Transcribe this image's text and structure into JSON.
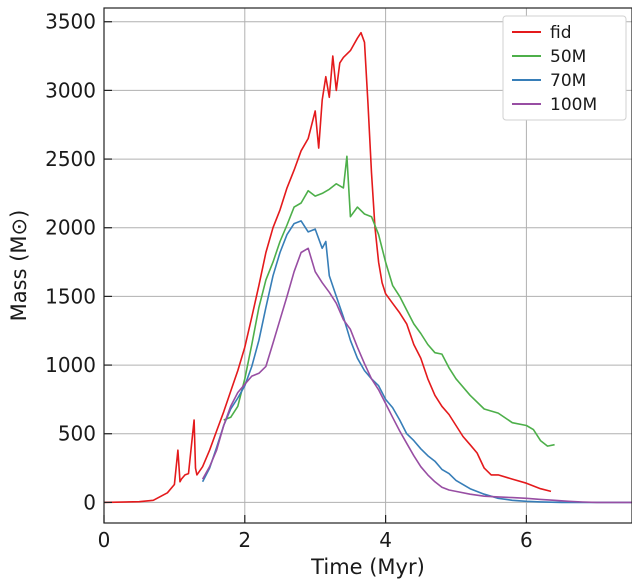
{
  "chart_data": {
    "type": "line",
    "title": "",
    "xlabel": "Time (Myr)",
    "ylabel": "Mass (M⊙)",
    "xlim": [
      0,
      7.5
    ],
    "ylim": [
      -150,
      3600
    ],
    "xticks": [
      0,
      2,
      4,
      6
    ],
    "yticks": [
      0,
      500,
      1000,
      1500,
      2000,
      2500,
      3000,
      3500
    ],
    "grid": true,
    "legend_position": "top-right",
    "series": [
      {
        "name": "fid",
        "color": "#e41a1c",
        "x": [
          0,
          0.5,
          0.7,
          0.9,
          1.0,
          1.05,
          1.08,
          1.1,
          1.15,
          1.2,
          1.28,
          1.3,
          1.32,
          1.4,
          1.5,
          1.6,
          1.7,
          1.8,
          1.9,
          2.0,
          2.1,
          2.2,
          2.3,
          2.4,
          2.5,
          2.6,
          2.7,
          2.8,
          2.9,
          3.0,
          3.05,
          3.1,
          3.15,
          3.2,
          3.25,
          3.3,
          3.35,
          3.4,
          3.5,
          3.6,
          3.65,
          3.7,
          3.75,
          3.8,
          3.85,
          3.9,
          3.95,
          4.0,
          4.1,
          4.2,
          4.3,
          4.4,
          4.5,
          4.6,
          4.7,
          4.8,
          4.9,
          5.0,
          5.1,
          5.2,
          5.3,
          5.4,
          5.5,
          5.6,
          5.8,
          6.0,
          6.2,
          6.35
        ],
        "y": [
          0,
          5,
          15,
          70,
          130,
          380,
          150,
          170,
          200,
          210,
          600,
          250,
          200,
          260,
          380,
          520,
          660,
          810,
          960,
          1130,
          1350,
          1580,
          1820,
          2000,
          2130,
          2290,
          2420,
          2560,
          2650,
          2850,
          2580,
          2930,
          3100,
          2950,
          3250,
          3000,
          3200,
          3240,
          3290,
          3380,
          3420,
          3350,
          2900,
          2400,
          2000,
          1750,
          1600,
          1520,
          1450,
          1380,
          1300,
          1150,
          1050,
          900,
          780,
          700,
          640,
          560,
          480,
          420,
          360,
          250,
          200,
          200,
          170,
          140,
          100,
          80
        ]
      },
      {
        "name": "50M",
        "color": "#4daf4a",
        "x": [
          1.7,
          1.8,
          1.9,
          2.0,
          2.1,
          2.2,
          2.3,
          2.4,
          2.5,
          2.6,
          2.7,
          2.8,
          2.9,
          3.0,
          3.1,
          3.2,
          3.3,
          3.4,
          3.45,
          3.5,
          3.6,
          3.7,
          3.8,
          3.9,
          4.0,
          4.1,
          4.2,
          4.3,
          4.4,
          4.5,
          4.6,
          4.7,
          4.8,
          4.9,
          5.0,
          5.2,
          5.4,
          5.6,
          5.8,
          6.0,
          6.1,
          6.2,
          6.3,
          6.4
        ],
        "y": [
          600,
          620,
          700,
          900,
          1150,
          1420,
          1620,
          1750,
          1900,
          2020,
          2150,
          2180,
          2270,
          2230,
          2250,
          2280,
          2320,
          2290,
          2520,
          2080,
          2150,
          2100,
          2080,
          1950,
          1750,
          1580,
          1500,
          1400,
          1300,
          1230,
          1150,
          1090,
          1080,
          980,
          900,
          780,
          680,
          650,
          580,
          560,
          530,
          450,
          410,
          420
        ]
      },
      {
        "name": "70M",
        "color": "#377eb8",
        "x": [
          1.4,
          1.5,
          1.6,
          1.7,
          1.8,
          1.9,
          2.0,
          2.1,
          2.2,
          2.3,
          2.4,
          2.5,
          2.6,
          2.7,
          2.8,
          2.9,
          3.0,
          3.1,
          3.15,
          3.2,
          3.3,
          3.4,
          3.5,
          3.6,
          3.7,
          3.8,
          3.9,
          4.0,
          4.1,
          4.2,
          4.3,
          4.4,
          4.5,
          4.6,
          4.7,
          4.8,
          4.9,
          5.0,
          5.2,
          5.4,
          5.6,
          5.8,
          6.0,
          6.2,
          6.5,
          7.0,
          7.5
        ],
        "y": [
          150,
          250,
          400,
          560,
          680,
          760,
          850,
          990,
          1180,
          1420,
          1650,
          1820,
          1950,
          2030,
          2050,
          1970,
          1990,
          1850,
          1900,
          1650,
          1500,
          1350,
          1180,
          1050,
          960,
          900,
          850,
          750,
          690,
          600,
          500,
          450,
          390,
          340,
          300,
          240,
          210,
          160,
          100,
          60,
          30,
          15,
          8,
          4,
          0,
          0,
          0
        ]
      },
      {
        "name": "100M",
        "color": "#984ea3",
        "x": [
          1.4,
          1.5,
          1.6,
          1.7,
          1.8,
          1.9,
          2.0,
          2.1,
          2.2,
          2.3,
          2.4,
          2.5,
          2.6,
          2.7,
          2.8,
          2.9,
          3.0,
          3.1,
          3.2,
          3.3,
          3.4,
          3.5,
          3.6,
          3.7,
          3.8,
          3.9,
          4.0,
          4.1,
          4.2,
          4.3,
          4.4,
          4.5,
          4.6,
          4.7,
          4.8,
          4.9,
          5.0,
          5.2,
          5.4,
          5.6,
          5.8,
          6.0,
          6.2,
          6.4,
          6.6,
          6.8,
          7.0,
          7.5
        ],
        "y": [
          170,
          260,
          380,
          560,
          700,
          800,
          860,
          920,
          940,
          990,
          1160,
          1330,
          1500,
          1680,
          1820,
          1850,
          1680,
          1600,
          1530,
          1450,
          1330,
          1260,
          1130,
          1010,
          900,
          820,
          720,
          620,
          520,
          430,
          340,
          260,
          200,
          150,
          110,
          90,
          80,
          60,
          45,
          40,
          35,
          30,
          22,
          15,
          8,
          3,
          0,
          0
        ]
      }
    ]
  }
}
